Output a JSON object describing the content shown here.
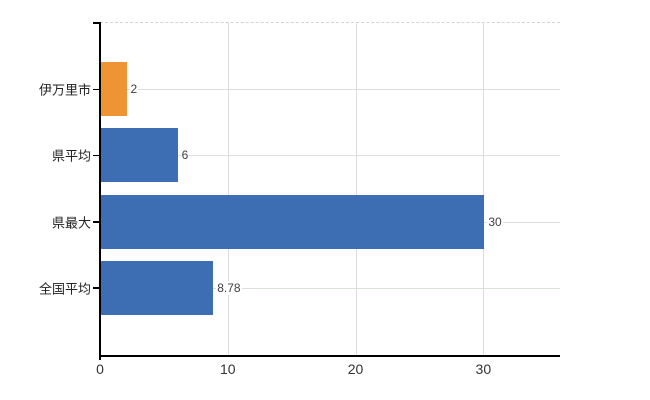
{
  "chart_data": {
    "type": "bar",
    "orientation": "horizontal",
    "title": "",
    "categories": [
      "伊万里市",
      "県平均",
      "県最大",
      "全国平均"
    ],
    "values": [
      2,
      6,
      30,
      8.78
    ],
    "value_labels": [
      "2",
      "6",
      "30",
      "8.78"
    ],
    "bar_colors": [
      "#ee9434",
      "#3d6eb4",
      "#3d6eb4",
      "#3d6eb4"
    ],
    "x_ticks": [
      0,
      10,
      20,
      30
    ],
    "x_tick_labels": [
      "0",
      "10",
      "20",
      "30"
    ],
    "xlim": [
      0,
      36
    ],
    "grid": true,
    "legend": false,
    "xlabel": "",
    "ylabel": ""
  },
  "colors": {
    "highlight_bar": "#ee9434",
    "default_bar": "#3d6eb4",
    "axis": "#000000",
    "h_gridline": "#d9e1d8",
    "v_gridline": "#dcdcdc",
    "top_border": "#d4d4d4",
    "tick_text": "#333333",
    "category_text": "#222222",
    "value_text": "#404040"
  }
}
